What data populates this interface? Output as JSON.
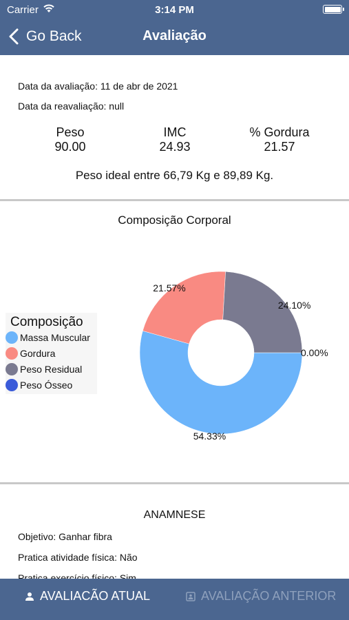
{
  "status": {
    "carrier": "Carrier",
    "time": "3:14 PM"
  },
  "nav": {
    "back_label": "Go Back",
    "title": "Avaliação"
  },
  "info": {
    "data_avaliacao": "Data da avaliação: 11 de abr de 2021",
    "data_reavaliacao": "Data da reavaliação: null",
    "metrics": [
      {
        "label": "Peso",
        "value": "90.00"
      },
      {
        "label": "IMC",
        "value": "24.93"
      },
      {
        "label": "% Gordura",
        "value": "21.57"
      }
    ],
    "peso_ideal": "Peso ideal entre 66,79 Kg e 89,89 Kg."
  },
  "chart": {
    "title": "Composição Corporal",
    "legend_title": "Composição"
  },
  "chart_data": {
    "type": "pie",
    "title": "Composição Corporal",
    "legend_title": "Composição",
    "donut": true,
    "legend_position": "left",
    "labels": [
      "Massa Muscular",
      "Gordura",
      "Peso Residual",
      "Peso Ósseo"
    ],
    "values": [
      54.33,
      21.57,
      24.1,
      0.0
    ],
    "value_labels": [
      "54.33%",
      "21.57%",
      "24.10%",
      "0.00%"
    ],
    "colors": [
      "#6cb4fa",
      "#f98a82",
      "#7a7a90",
      "#3b5bd9"
    ]
  },
  "anamnese": {
    "title": "ANAMNESE",
    "items": [
      "Objetivo: Ganhar fibra",
      "Pratica atividade física: Não",
      "Pratica exercício físico: Sim"
    ]
  },
  "tabs": {
    "current": "AVALIACÃO ATUAL",
    "previous": "AVALIAÇÃO ANTERIOR"
  }
}
